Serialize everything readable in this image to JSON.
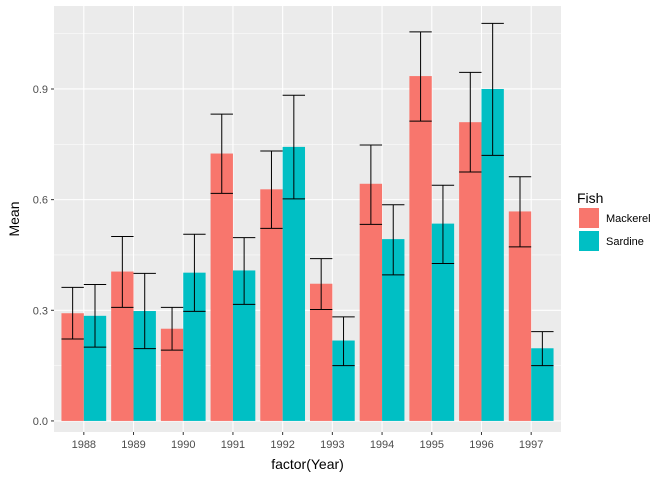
{
  "chart_data": {
    "type": "bar",
    "categories": [
      "1988",
      "1989",
      "1990",
      "1991",
      "1992",
      "1993",
      "1994",
      "1995",
      "1996",
      "1997"
    ],
    "series": [
      {
        "name": "Mackerel",
        "color": "#F8766D",
        "values": [
          0.292,
          0.405,
          0.25,
          0.725,
          0.628,
          0.372,
          0.643,
          0.935,
          0.81,
          0.568
        ],
        "error_low": [
          0.222,
          0.308,
          0.192,
          0.617,
          0.522,
          0.302,
          0.533,
          0.813,
          0.675,
          0.472
        ],
        "error_high": [
          0.362,
          0.5,
          0.308,
          0.832,
          0.732,
          0.44,
          0.748,
          1.055,
          0.945,
          0.662
        ]
      },
      {
        "name": "Sardine",
        "color": "#00BFC4",
        "values": [
          0.285,
          0.298,
          0.402,
          0.408,
          0.743,
          0.218,
          0.493,
          0.535,
          0.9,
          0.197
        ],
        "error_low": [
          0.2,
          0.196,
          0.297,
          0.316,
          0.602,
          0.15,
          0.396,
          0.427,
          0.72,
          0.15
        ],
        "error_high": [
          0.37,
          0.4,
          0.506,
          0.497,
          0.883,
          0.282,
          0.586,
          0.639,
          1.078,
          0.242
        ]
      }
    ],
    "xlabel": "factor(Year)",
    "ylabel": "Mean",
    "ylim": [
      -0.03,
      1.125
    ],
    "yticks": [
      0.0,
      0.3,
      0.6,
      0.9
    ],
    "ytick_labels": [
      "0.0",
      "0.3",
      "0.6",
      "0.9"
    ],
    "legend": {
      "title": "Fish",
      "position": "right"
    },
    "grid": true,
    "panel_background": "#EBEBEB",
    "grid_color": "#FFFFFF"
  }
}
